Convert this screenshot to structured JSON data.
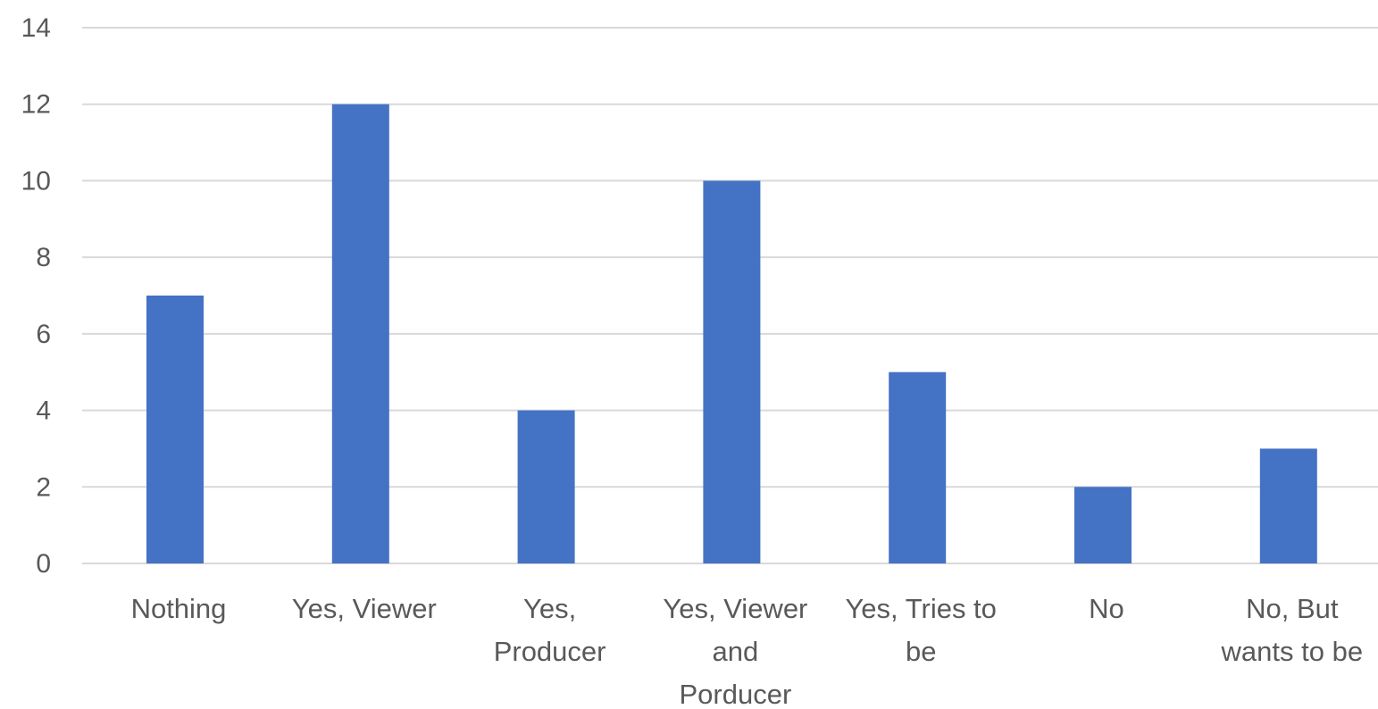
{
  "chart_data": {
    "type": "bar",
    "title": "",
    "xlabel": "",
    "ylabel": "",
    "categories": [
      "Nothing",
      "Yes, Viewer",
      "Yes, Producer",
      "Yes, Viewer and Porducer",
      "Yes, Tries to be",
      "No",
      "No, But wants to be"
    ],
    "category_label_lines": [
      [
        "Nothing"
      ],
      [
        "Yes, Viewer"
      ],
      [
        "Yes,",
        "Producer"
      ],
      [
        "Yes, Viewer",
        "and",
        "Porducer"
      ],
      [
        "Yes, Tries to",
        "be"
      ],
      [
        "No"
      ],
      [
        "No, But",
        "wants to be"
      ]
    ],
    "values": [
      7,
      12,
      4,
      10,
      5,
      2,
      3
    ],
    "ylim": [
      0,
      14
    ],
    "yticks": [
      "0",
      "2",
      "4",
      "6",
      "8",
      "10",
      "12",
      "14"
    ],
    "grid": true,
    "legend": "none",
    "colors": {
      "bar": "#4472C4",
      "grid": "#D9D9D9",
      "text": "#595959"
    }
  }
}
